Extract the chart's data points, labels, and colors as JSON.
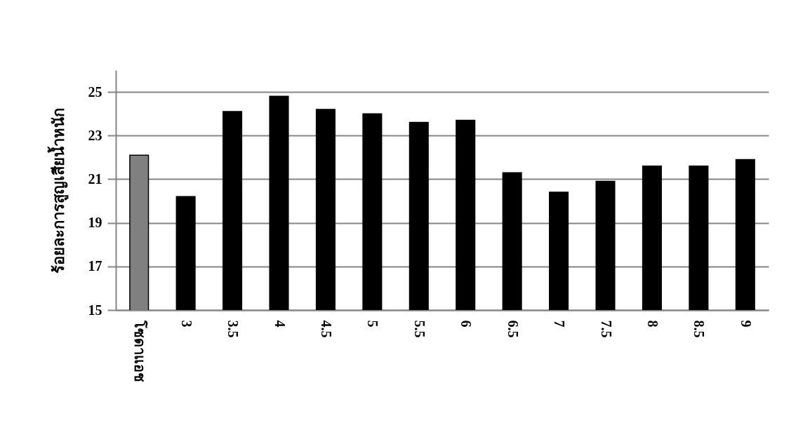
{
  "chart_data": {
    "type": "bar",
    "ylabel": "ร้อยละการสูญเสียน้ำหนัก",
    "categories": [
      "โซดาแอช",
      "3",
      "3.5",
      "4",
      "4.5",
      "5",
      "5.5",
      "6",
      "6.5",
      "7",
      "7.5",
      "8",
      "8.5",
      "9"
    ],
    "values": [
      22.1,
      20.2,
      24.1,
      24.8,
      24.2,
      24.0,
      23.6,
      23.7,
      21.3,
      20.4,
      20.9,
      21.6,
      21.6,
      21.9
    ],
    "colors": [
      "#808080",
      "#000000",
      "#000000",
      "#000000",
      "#000000",
      "#000000",
      "#000000",
      "#000000",
      "#000000",
      "#000000",
      "#000000",
      "#000000",
      "#000000",
      "#000000"
    ],
    "ylim": [
      15,
      26
    ],
    "yticks": [
      15,
      17,
      19,
      21,
      23,
      25
    ],
    "grid": "y"
  }
}
